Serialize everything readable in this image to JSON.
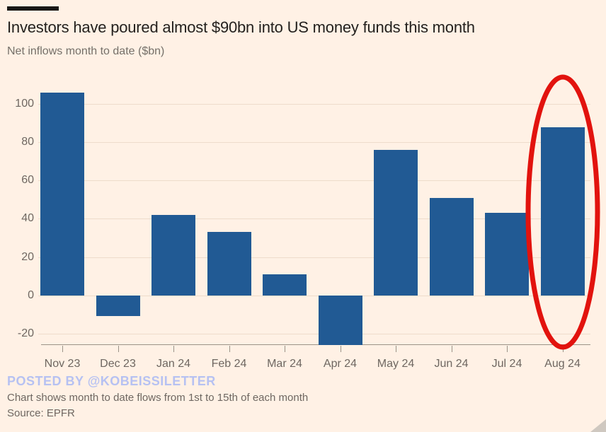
{
  "page": {
    "title": "Investors have poured almost $90bn into US money funds this month",
    "subtitle": "Net inflows month to date ($bn)",
    "watermark": "POSTED BY @KOBEISSILETTER",
    "footnote": "Chart shows month to date flows from 1st to 15th of each month",
    "source": "Source: EPFR"
  },
  "colors": {
    "background": "#FFF1E5",
    "bar": "#215A94",
    "gridline": "#EEDCCB",
    "axis_line": "#9B9287",
    "tick_label": "#6E6761",
    "title_text": "#24211E",
    "subtitle_text": "#757069",
    "annotation_red": "#E2130E",
    "watermark_blue": "#B6C1F2"
  },
  "chart_data": {
    "type": "bar",
    "title": "Investors have poured almost $90bn into US money funds this month",
    "subtitle": "Net inflows month to date ($bn)",
    "xlabel": "",
    "ylabel": "Net inflows month to date ($bn)",
    "categories": [
      "Nov 23",
      "Dec 23",
      "Jan 24",
      "Feb 24",
      "Mar 24",
      "Apr 24",
      "May 24",
      "Jun 24",
      "Jul 24",
      "Aug 24"
    ],
    "values": [
      106,
      -11,
      42,
      33,
      11,
      -26,
      76,
      51,
      43,
      88
    ],
    "yticks": [
      -20,
      0,
      20,
      40,
      60,
      80,
      100
    ],
    "ylim": [
      -26,
      110
    ],
    "grid": "horizontal",
    "legend": "none",
    "annotation": {
      "type": "ellipse",
      "category": "Aug 24",
      "label": "highlighted month"
    }
  }
}
